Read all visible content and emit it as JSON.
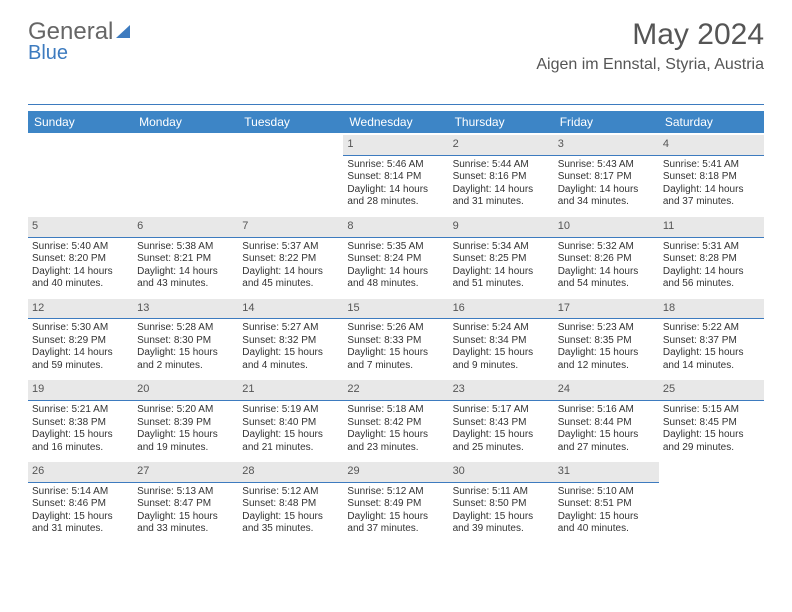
{
  "brand": {
    "part1": "General",
    "part2": "Blue"
  },
  "title": "May 2024",
  "location": "Aigen im Ennstal, Styria, Austria",
  "colors": {
    "header_bg": "#3d85c6",
    "accent_line": "#3d7bbf",
    "daynum_bg": "#e8e8e8",
    "text": "#333333",
    "muted": "#555555"
  },
  "day_headers": [
    "Sunday",
    "Monday",
    "Tuesday",
    "Wednesday",
    "Thursday",
    "Friday",
    "Saturday"
  ],
  "weeks": [
    [
      {
        "n": "",
        "sr": "",
        "ss": "",
        "dl": ""
      },
      {
        "n": "",
        "sr": "",
        "ss": "",
        "dl": ""
      },
      {
        "n": "",
        "sr": "",
        "ss": "",
        "dl": ""
      },
      {
        "n": "1",
        "sr": "Sunrise: 5:46 AM",
        "ss": "Sunset: 8:14 PM",
        "dl": "Daylight: 14 hours and 28 minutes."
      },
      {
        "n": "2",
        "sr": "Sunrise: 5:44 AM",
        "ss": "Sunset: 8:16 PM",
        "dl": "Daylight: 14 hours and 31 minutes."
      },
      {
        "n": "3",
        "sr": "Sunrise: 5:43 AM",
        "ss": "Sunset: 8:17 PM",
        "dl": "Daylight: 14 hours and 34 minutes."
      },
      {
        "n": "4",
        "sr": "Sunrise: 5:41 AM",
        "ss": "Sunset: 8:18 PM",
        "dl": "Daylight: 14 hours and 37 minutes."
      }
    ],
    [
      {
        "n": "5",
        "sr": "Sunrise: 5:40 AM",
        "ss": "Sunset: 8:20 PM",
        "dl": "Daylight: 14 hours and 40 minutes."
      },
      {
        "n": "6",
        "sr": "Sunrise: 5:38 AM",
        "ss": "Sunset: 8:21 PM",
        "dl": "Daylight: 14 hours and 43 minutes."
      },
      {
        "n": "7",
        "sr": "Sunrise: 5:37 AM",
        "ss": "Sunset: 8:22 PM",
        "dl": "Daylight: 14 hours and 45 minutes."
      },
      {
        "n": "8",
        "sr": "Sunrise: 5:35 AM",
        "ss": "Sunset: 8:24 PM",
        "dl": "Daylight: 14 hours and 48 minutes."
      },
      {
        "n": "9",
        "sr": "Sunrise: 5:34 AM",
        "ss": "Sunset: 8:25 PM",
        "dl": "Daylight: 14 hours and 51 minutes."
      },
      {
        "n": "10",
        "sr": "Sunrise: 5:32 AM",
        "ss": "Sunset: 8:26 PM",
        "dl": "Daylight: 14 hours and 54 minutes."
      },
      {
        "n": "11",
        "sr": "Sunrise: 5:31 AM",
        "ss": "Sunset: 8:28 PM",
        "dl": "Daylight: 14 hours and 56 minutes."
      }
    ],
    [
      {
        "n": "12",
        "sr": "Sunrise: 5:30 AM",
        "ss": "Sunset: 8:29 PM",
        "dl": "Daylight: 14 hours and 59 minutes."
      },
      {
        "n": "13",
        "sr": "Sunrise: 5:28 AM",
        "ss": "Sunset: 8:30 PM",
        "dl": "Daylight: 15 hours and 2 minutes."
      },
      {
        "n": "14",
        "sr": "Sunrise: 5:27 AM",
        "ss": "Sunset: 8:32 PM",
        "dl": "Daylight: 15 hours and 4 minutes."
      },
      {
        "n": "15",
        "sr": "Sunrise: 5:26 AM",
        "ss": "Sunset: 8:33 PM",
        "dl": "Daylight: 15 hours and 7 minutes."
      },
      {
        "n": "16",
        "sr": "Sunrise: 5:24 AM",
        "ss": "Sunset: 8:34 PM",
        "dl": "Daylight: 15 hours and 9 minutes."
      },
      {
        "n": "17",
        "sr": "Sunrise: 5:23 AM",
        "ss": "Sunset: 8:35 PM",
        "dl": "Daylight: 15 hours and 12 minutes."
      },
      {
        "n": "18",
        "sr": "Sunrise: 5:22 AM",
        "ss": "Sunset: 8:37 PM",
        "dl": "Daylight: 15 hours and 14 minutes."
      }
    ],
    [
      {
        "n": "19",
        "sr": "Sunrise: 5:21 AM",
        "ss": "Sunset: 8:38 PM",
        "dl": "Daylight: 15 hours and 16 minutes."
      },
      {
        "n": "20",
        "sr": "Sunrise: 5:20 AM",
        "ss": "Sunset: 8:39 PM",
        "dl": "Daylight: 15 hours and 19 minutes."
      },
      {
        "n": "21",
        "sr": "Sunrise: 5:19 AM",
        "ss": "Sunset: 8:40 PM",
        "dl": "Daylight: 15 hours and 21 minutes."
      },
      {
        "n": "22",
        "sr": "Sunrise: 5:18 AM",
        "ss": "Sunset: 8:42 PM",
        "dl": "Daylight: 15 hours and 23 minutes."
      },
      {
        "n": "23",
        "sr": "Sunrise: 5:17 AM",
        "ss": "Sunset: 8:43 PM",
        "dl": "Daylight: 15 hours and 25 minutes."
      },
      {
        "n": "24",
        "sr": "Sunrise: 5:16 AM",
        "ss": "Sunset: 8:44 PM",
        "dl": "Daylight: 15 hours and 27 minutes."
      },
      {
        "n": "25",
        "sr": "Sunrise: 5:15 AM",
        "ss": "Sunset: 8:45 PM",
        "dl": "Daylight: 15 hours and 29 minutes."
      }
    ],
    [
      {
        "n": "26",
        "sr": "Sunrise: 5:14 AM",
        "ss": "Sunset: 8:46 PM",
        "dl": "Daylight: 15 hours and 31 minutes."
      },
      {
        "n": "27",
        "sr": "Sunrise: 5:13 AM",
        "ss": "Sunset: 8:47 PM",
        "dl": "Daylight: 15 hours and 33 minutes."
      },
      {
        "n": "28",
        "sr": "Sunrise: 5:12 AM",
        "ss": "Sunset: 8:48 PM",
        "dl": "Daylight: 15 hours and 35 minutes."
      },
      {
        "n": "29",
        "sr": "Sunrise: 5:12 AM",
        "ss": "Sunset: 8:49 PM",
        "dl": "Daylight: 15 hours and 37 minutes."
      },
      {
        "n": "30",
        "sr": "Sunrise: 5:11 AM",
        "ss": "Sunset: 8:50 PM",
        "dl": "Daylight: 15 hours and 39 minutes."
      },
      {
        "n": "31",
        "sr": "Sunrise: 5:10 AM",
        "ss": "Sunset: 8:51 PM",
        "dl": "Daylight: 15 hours and 40 minutes."
      },
      {
        "n": "",
        "sr": "",
        "ss": "",
        "dl": ""
      }
    ]
  ]
}
